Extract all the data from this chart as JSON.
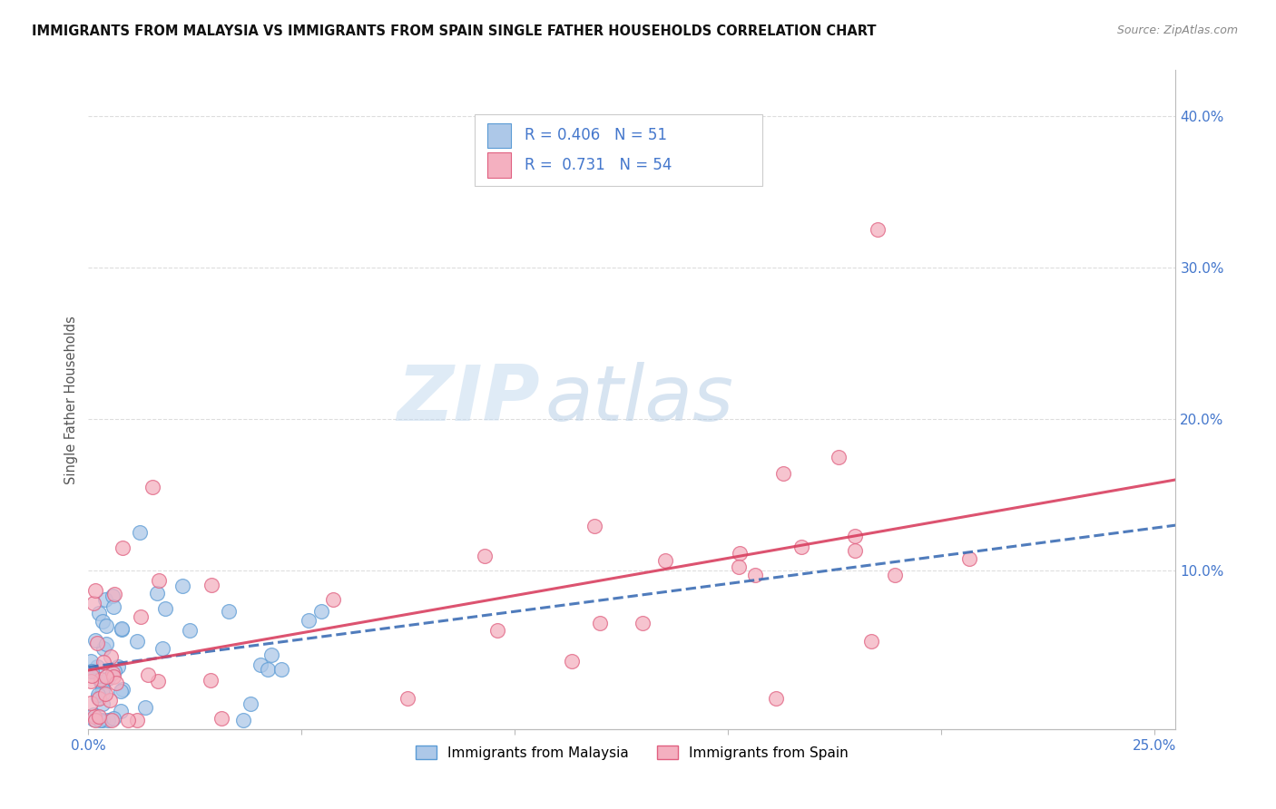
{
  "title": "IMMIGRANTS FROM MALAYSIA VS IMMIGRANTS FROM SPAIN SINGLE FATHER HOUSEHOLDS CORRELATION CHART",
  "source": "Source: ZipAtlas.com",
  "ylabel": "Single Father Households",
  "xlim": [
    0.0,
    0.255
  ],
  "ylim": [
    -0.005,
    0.43
  ],
  "xticks": [
    0.0,
    0.05,
    0.1,
    0.15,
    0.2,
    0.25
  ],
  "xticklabels": [
    "0.0%",
    "",
    "",
    "",
    "",
    "25.0%"
  ],
  "yticks_right": [
    0.1,
    0.2,
    0.3,
    0.4
  ],
  "yticks_right_labels": [
    "10.0%",
    "20.0%",
    "30.0%",
    "40.0%"
  ],
  "malaysia_face_color": "#adc8e8",
  "malaysia_edge_color": "#5b9bd5",
  "spain_face_color": "#f4b0c0",
  "spain_edge_color": "#e06080",
  "trend_malaysia_color": "#3d6eb5",
  "trend_spain_color": "#d94060",
  "trend_malaysia_style": "--",
  "trend_spain_style": "-",
  "legend_R_malaysia": "0.406",
  "legend_N_malaysia": "51",
  "legend_R_spain": "0.731",
  "legend_N_spain": "54",
  "watermark_zip": "ZIP",
  "watermark_atlas": "atlas",
  "label_color": "#4477cc",
  "grid_color": "#dddddd",
  "background_color": "#ffffff"
}
